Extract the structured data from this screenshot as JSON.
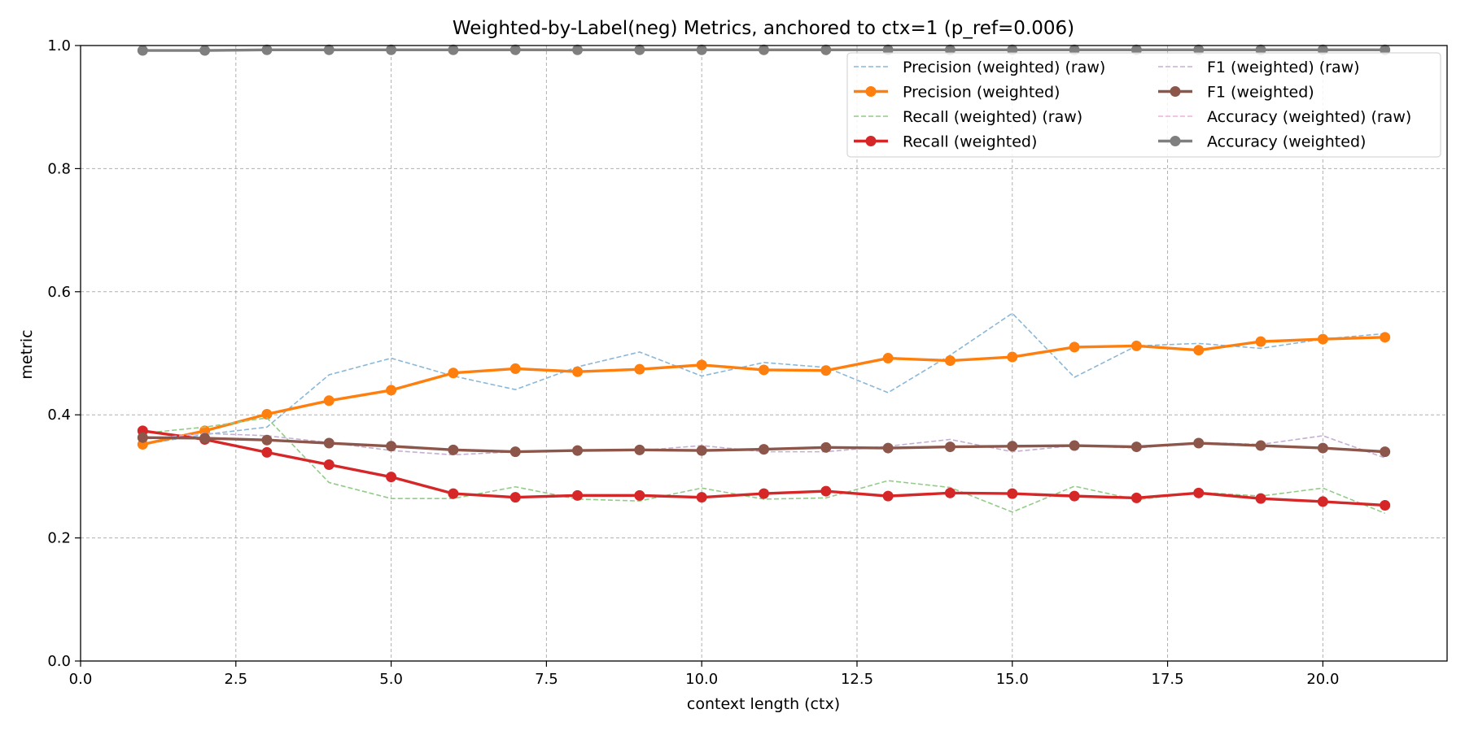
{
  "chart_data": {
    "type": "line",
    "title": "Weighted-by-Label(neg) Metrics, anchored to ctx=1 (p_ref=0.006)",
    "xlabel": "context length (ctx)",
    "ylabel": "metric",
    "xlim": [
      0.0,
      22.0
    ],
    "ylim": [
      0.0,
      1.0
    ],
    "xticks": [
      0.0,
      2.5,
      5.0,
      7.5,
      10.0,
      12.5,
      15.0,
      17.5,
      20.0
    ],
    "xtick_labels": [
      "0.0",
      "2.5",
      "5.0",
      "7.5",
      "10.0",
      "12.5",
      "15.0",
      "17.5",
      "20.0"
    ],
    "yticks": [
      0.0,
      0.2,
      0.4,
      0.6,
      0.8,
      1.0
    ],
    "ytick_labels": [
      "0.0",
      "0.2",
      "0.4",
      "0.6",
      "0.8",
      "1.0"
    ],
    "grid": true,
    "legend_position": "top-right",
    "legend_columns": 2,
    "x": [
      1,
      2,
      3,
      4,
      5,
      6,
      7,
      8,
      9,
      10,
      11,
      12,
      13,
      14,
      15,
      16,
      17,
      18,
      19,
      20,
      21
    ],
    "series": [
      {
        "name": "Precision (weighted) (raw)",
        "style": "dashed",
        "color": "#8ab8d9",
        "values": [
          0.352,
          0.368,
          0.38,
          0.465,
          0.492,
          0.463,
          0.441,
          0.478,
          0.502,
          0.463,
          0.485,
          0.477,
          0.436,
          0.497,
          0.565,
          0.461,
          0.512,
          0.516,
          0.508,
          0.523,
          0.532
        ]
      },
      {
        "name": "Precision (weighted)",
        "style": "solid-marker",
        "color": "#ff7f0e",
        "values": [
          0.352,
          0.374,
          0.401,
          0.423,
          0.44,
          0.468,
          0.475,
          0.47,
          0.474,
          0.481,
          0.473,
          0.472,
          0.492,
          0.488,
          0.494,
          0.51,
          0.512,
          0.505,
          0.519,
          0.523,
          0.526
        ]
      },
      {
        "name": "Recall (weighted) (raw)",
        "style": "dashed",
        "color": "#92cc88",
        "values": [
          0.37,
          0.38,
          0.395,
          0.29,
          0.264,
          0.264,
          0.283,
          0.263,
          0.26,
          0.281,
          0.263,
          0.265,
          0.293,
          0.282,
          0.242,
          0.284,
          0.262,
          0.274,
          0.268,
          0.281,
          0.24
        ]
      },
      {
        "name": "Recall (weighted)",
        "style": "solid-marker",
        "color": "#d62728",
        "values": [
          0.374,
          0.36,
          0.339,
          0.319,
          0.299,
          0.272,
          0.266,
          0.269,
          0.269,
          0.266,
          0.272,
          0.276,
          0.268,
          0.273,
          0.272,
          0.268,
          0.265,
          0.273,
          0.264,
          0.259,
          0.253
        ]
      },
      {
        "name": "F1 (weighted) (raw)",
        "style": "dashed",
        "color": "#c5aed4",
        "values": [
          0.36,
          0.37,
          0.366,
          0.355,
          0.342,
          0.335,
          0.34,
          0.343,
          0.342,
          0.35,
          0.34,
          0.34,
          0.349,
          0.36,
          0.34,
          0.35,
          0.346,
          0.355,
          0.352,
          0.366,
          0.33
        ]
      },
      {
        "name": "F1 (weighted)",
        "style": "solid-marker",
        "color": "#8c564b",
        "values": [
          0.363,
          0.362,
          0.359,
          0.354,
          0.349,
          0.343,
          0.34,
          0.342,
          0.343,
          0.342,
          0.344,
          0.347,
          0.346,
          0.348,
          0.349,
          0.35,
          0.348,
          0.354,
          0.35,
          0.346,
          0.34
        ]
      },
      {
        "name": "Accuracy (weighted) (raw)",
        "style": "dashed",
        "color": "#f0b0d6",
        "values": [
          0.992,
          0.992,
          0.993,
          0.993,
          0.993,
          0.993,
          0.993,
          0.993,
          0.993,
          0.993,
          0.993,
          0.993,
          0.993,
          0.993,
          0.993,
          0.993,
          0.993,
          0.993,
          0.993,
          0.993,
          0.993
        ]
      },
      {
        "name": "Accuracy (weighted)",
        "style": "solid-marker",
        "color": "#7f7f7f",
        "values": [
          0.992,
          0.992,
          0.993,
          0.993,
          0.993,
          0.993,
          0.993,
          0.993,
          0.993,
          0.993,
          0.993,
          0.993,
          0.993,
          0.993,
          0.993,
          0.993,
          0.993,
          0.993,
          0.993,
          0.993,
          0.993
        ]
      }
    ]
  }
}
